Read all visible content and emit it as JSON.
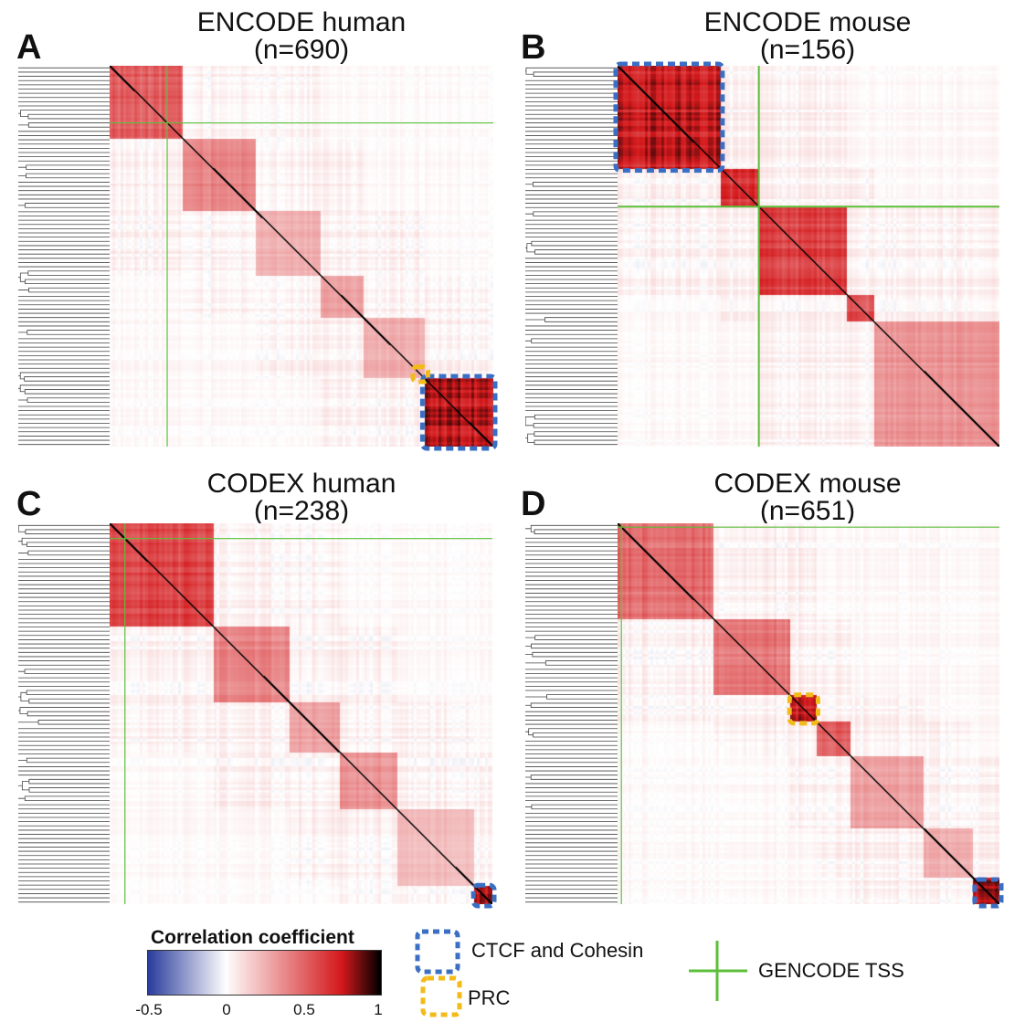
{
  "panels": [
    {
      "letter": "A",
      "title": "ENCODE human",
      "subtitle": "(n=690)"
    },
    {
      "letter": "B",
      "title": "ENCODE mouse",
      "subtitle": "(n=156)"
    },
    {
      "letter": "C",
      "title": "CODEX human",
      "subtitle": "(n=238)"
    },
    {
      "letter": "D",
      "title": "CODEX mouse",
      "subtitle": "(n=651)"
    }
  ],
  "legend": {
    "colorbar_title": "Correlation coefficient",
    "ticks": [
      "-0.5",
      "0",
      "0.5",
      "1"
    ],
    "ctcf_label": "CTCF and Cohesin",
    "prc_label": "PRC",
    "tss_label": "GENCODE TSS"
  },
  "colors": {
    "ctcf_box": "#3a6fc4",
    "prc_box": "#f2bb1a",
    "gencode_tss": "#5cbf3a",
    "low": "#2c3e9e",
    "mid": "#ffffff",
    "high": "#d4191c",
    "max": "#000000"
  },
  "chart_data": [
    {
      "type": "heatmap",
      "title": "ENCODE human",
      "subtitle": "(n=690)",
      "n": 690,
      "value_range": [
        -0.5,
        1
      ],
      "diagonal": 1,
      "blocks": [
        {
          "range": [
            0.0,
            0.19
          ],
          "value": 0.6
        },
        {
          "range": [
            0.19,
            0.38
          ],
          "value": 0.45
        },
        {
          "range": [
            0.38,
            0.55
          ],
          "value": 0.3
        },
        {
          "range": [
            0.55,
            0.66
          ],
          "value": 0.35
        },
        {
          "range": [
            0.66,
            0.82
          ],
          "value": 0.3
        },
        {
          "range": [
            0.82,
            1.0
          ],
          "value": 0.9
        }
      ],
      "gencode_tss_position": 0.15,
      "ctcf_cohesin_cluster": [
        0.82,
        1.0
      ],
      "prc_cluster": [
        0.795,
        0.825
      ]
    },
    {
      "type": "heatmap",
      "title": "ENCODE mouse",
      "subtitle": "(n=156)",
      "n": 156,
      "value_range": [
        -0.5,
        1
      ],
      "diagonal": 1,
      "blocks": [
        {
          "range": [
            0.0,
            0.27
          ],
          "value": 0.85
        },
        {
          "range": [
            0.27,
            0.37
          ],
          "value": 0.75
        },
        {
          "range": [
            0.37,
            0.6
          ],
          "value": 0.7
        },
        {
          "range": [
            0.6,
            0.67
          ],
          "value": 0.65
        },
        {
          "range": [
            0.67,
            1.0
          ],
          "value": 0.4
        }
      ],
      "gencode_tss_position": 0.37,
      "ctcf_cohesin_cluster": [
        0.0,
        0.27
      ]
    },
    {
      "type": "heatmap",
      "title": "CODEX human",
      "subtitle": "(n=238)",
      "n": 238,
      "value_range": [
        -0.5,
        1
      ],
      "diagonal": 1,
      "blocks": [
        {
          "range": [
            0.0,
            0.27
          ],
          "value": 0.7
        },
        {
          "range": [
            0.27,
            0.47
          ],
          "value": 0.45
        },
        {
          "range": [
            0.47,
            0.6
          ],
          "value": 0.35
        },
        {
          "range": [
            0.6,
            0.75
          ],
          "value": 0.4
        },
        {
          "range": [
            0.75,
            0.95
          ],
          "value": 0.25
        },
        {
          "range": [
            0.95,
            1.0
          ],
          "value": 0.95
        }
      ],
      "gencode_tss_position": 0.04,
      "ctcf_cohesin_cluster": [
        0.955,
        1.0
      ]
    },
    {
      "type": "heatmap",
      "title": "CODEX mouse",
      "subtitle": "(n=651)",
      "n": 651,
      "value_range": [
        -0.5,
        1
      ],
      "diagonal": 1,
      "blocks": [
        {
          "range": [
            0.0,
            0.25
          ],
          "value": 0.55
        },
        {
          "range": [
            0.25,
            0.45
          ],
          "value": 0.5
        },
        {
          "range": [
            0.45,
            0.52
          ],
          "value": 0.85
        },
        {
          "range": [
            0.52,
            0.61
          ],
          "value": 0.6
        },
        {
          "range": [
            0.61,
            0.8
          ],
          "value": 0.35
        },
        {
          "range": [
            0.8,
            0.93
          ],
          "value": 0.3
        },
        {
          "range": [
            0.93,
            1.0
          ],
          "value": 0.9
        }
      ],
      "gencode_tss_position": 0.01,
      "ctcf_cohesin_cluster": [
        0.94,
        1.0
      ],
      "prc_cluster": [
        0.455,
        0.52
      ]
    }
  ]
}
